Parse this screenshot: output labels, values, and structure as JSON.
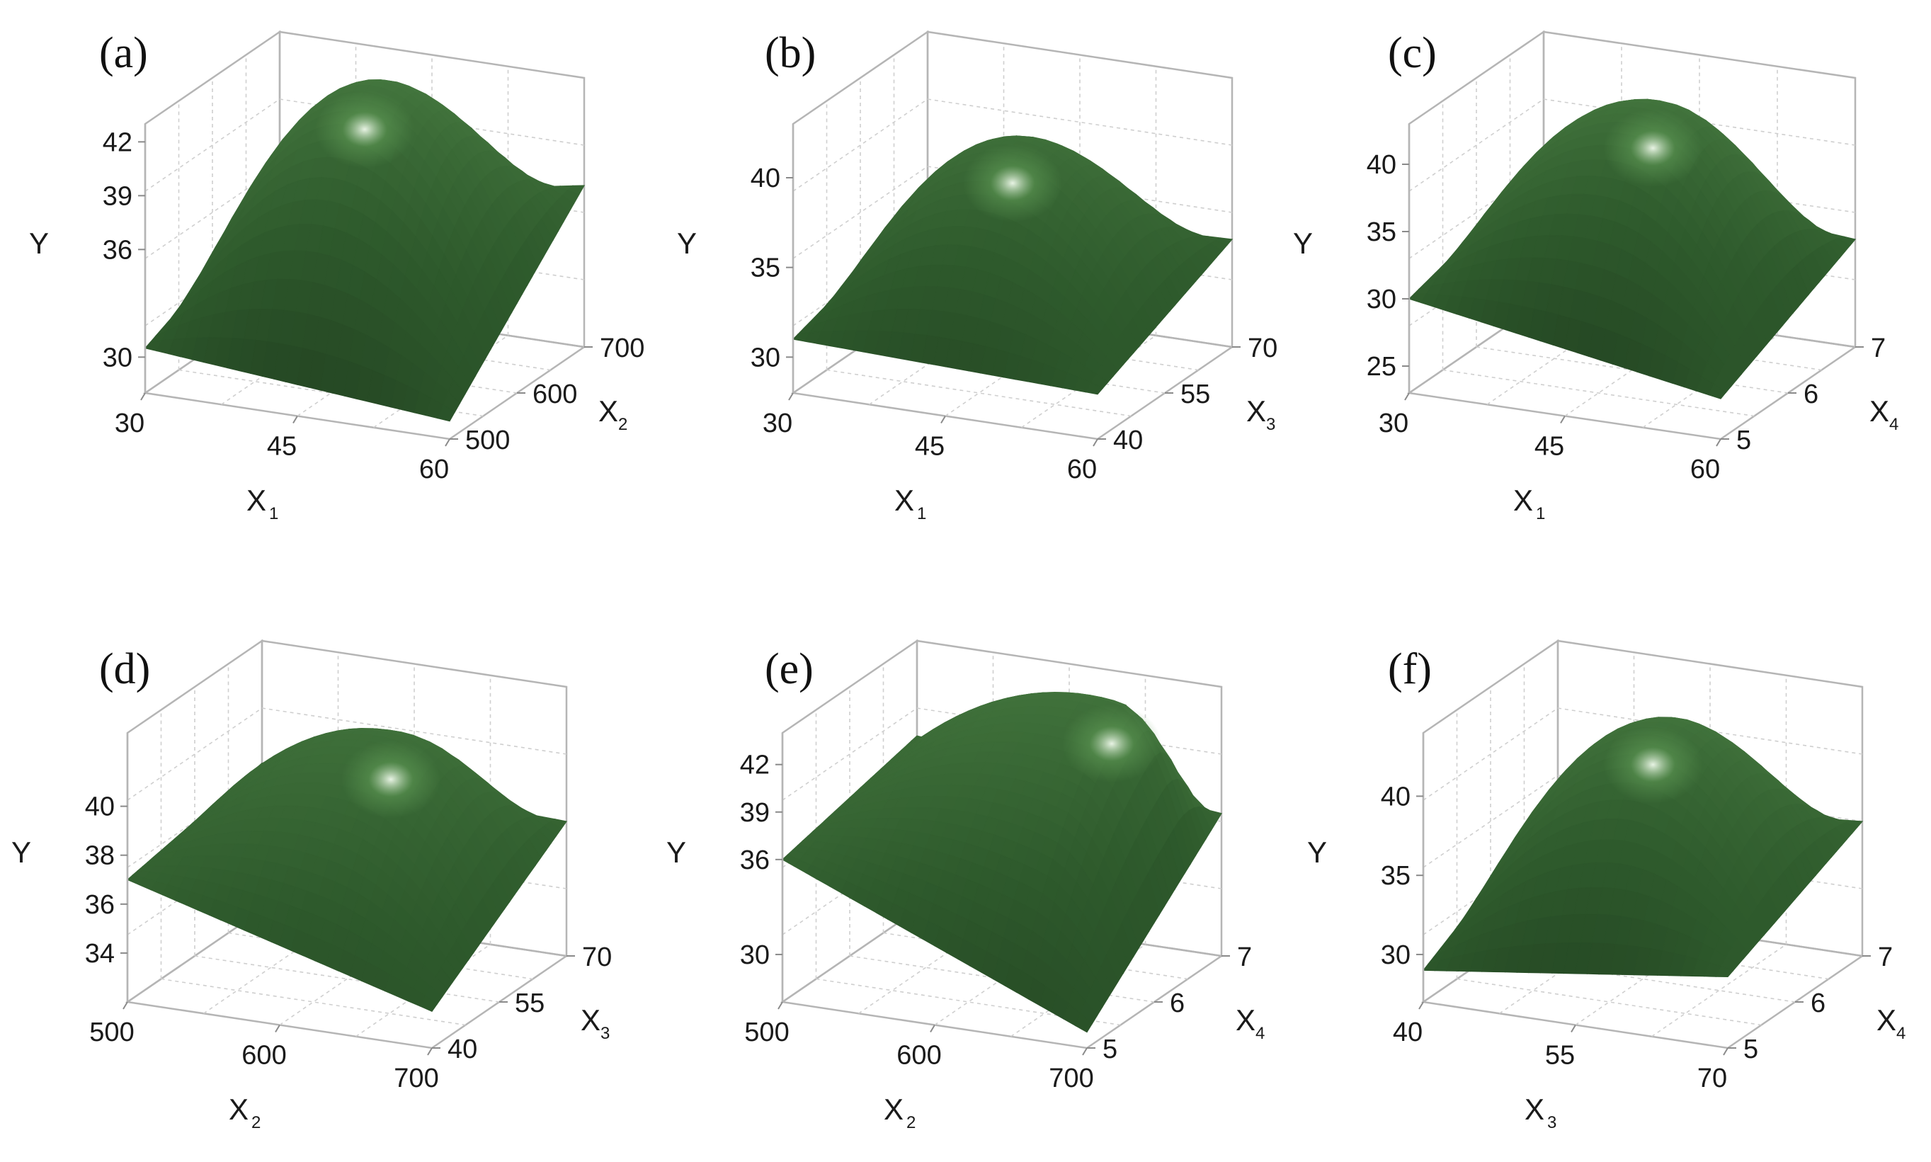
{
  "colors": {
    "surface_dark": "#142514",
    "surface_mid": "#2e5a2c",
    "surface_light": "#5f9a55",
    "highlight": "#f2fbee",
    "frame": "#b5b5b5"
  },
  "chart_data": [
    {
      "type": "surface",
      "panel": "(a)",
      "xlabel": "X",
      "xsub": "1",
      "xticks": [
        "30",
        "45",
        "60"
      ],
      "xlim": [
        30,
        60
      ],
      "ylabel": "X",
      "ysub": "2",
      "yticks": [
        "500",
        "600",
        "700"
      ],
      "ylim": [
        500,
        700
      ],
      "zlabel": "Y",
      "zticks": [
        "30",
        "36",
        "39",
        "42"
      ],
      "zlim": [
        28,
        43
      ],
      "peak": {
        "x": 45,
        "y": 600,
        "z": 43.5
      },
      "corner_values": {
        "x_min_y_min": 30.5,
        "x_max_y_min": 29.0,
        "x_min_y_max": 34.0,
        "x_max_y_max": 37.0
      },
      "edge_midpoints": {
        "y_min_mid": 38.5,
        "y_max_mid": 40.5
      }
    },
    {
      "type": "surface",
      "panel": "(b)",
      "xlabel": "X",
      "xsub": "1",
      "xticks": [
        "30",
        "45",
        "60"
      ],
      "xlim": [
        30,
        60
      ],
      "ylabel": "X",
      "ysub": "3",
      "yticks": [
        "40",
        "55",
        "70"
      ],
      "ylim": [
        40,
        70
      ],
      "zlabel": "Y",
      "zticks": [
        "30",
        "35",
        "40"
      ],
      "zlim": [
        28,
        43
      ],
      "peak": {
        "x": 45,
        "y": 55,
        "z": 40.5
      },
      "corner_values": {
        "x_min_y_min": 31.0,
        "x_max_y_min": 30.5,
        "x_min_y_max": 33.5,
        "x_max_y_max": 34.0
      },
      "edge_midpoints": {
        "y_min_mid": 37.5,
        "y_max_mid": 38.5
      }
    },
    {
      "type": "surface",
      "panel": "(c)",
      "xlabel": "X",
      "xsub": "1",
      "xticks": [
        "30",
        "45",
        "60"
      ],
      "xlim": [
        30,
        60
      ],
      "ylabel": "X",
      "ysub": "4",
      "yticks": [
        "5",
        "6",
        "7"
      ],
      "ylim": [
        5,
        7
      ],
      "zlabel": "Y",
      "zticks": [
        "25",
        "30",
        "35",
        "40"
      ],
      "zlim": [
        23,
        43
      ],
      "peak": {
        "x": 47,
        "y": 6,
        "z": 42.5
      },
      "corner_values": {
        "x_min_y_min": 30.0,
        "x_max_y_min": 26.0,
        "x_min_y_max": 33.0,
        "x_max_y_max": 31.0
      },
      "edge_midpoints": {
        "y_min_mid": 37.0,
        "y_max_mid": 39.0
      }
    },
    {
      "type": "surface",
      "panel": "(d)",
      "xlabel": "X",
      "xsub": "2",
      "xticks": [
        "500",
        "600",
        "700"
      ],
      "xlim": [
        500,
        700
      ],
      "ylabel": "X",
      "ysub": "3",
      "yticks": [
        "40",
        "55",
        "70"
      ],
      "ylim": [
        40,
        70
      ],
      "zlabel": "Y",
      "zticks": [
        "34",
        "36",
        "38",
        "40"
      ],
      "zlim": [
        32,
        43
      ],
      "peak": {
        "x": 620,
        "y": 58,
        "z": 41.5
      },
      "corner_values": {
        "x_min_y_min": 37.0,
        "x_max_y_min": 33.5,
        "x_min_y_max": 38.0,
        "x_max_y_max": 37.5
      },
      "edge_midpoints": {
        "y_min_mid": 38.0,
        "y_max_mid": 40.5
      }
    },
    {
      "type": "surface",
      "panel": "(e)",
      "xlabel": "X",
      "xsub": "2",
      "xticks": [
        "500",
        "600",
        "700"
      ],
      "xlim": [
        500,
        700
      ],
      "ylabel": "X",
      "ysub": "4",
      "yticks": [
        "5",
        "6",
        "7"
      ],
      "ylim": [
        5,
        7
      ],
      "zlabel": "Y",
      "zticks": [
        "30",
        "36",
        "39",
        "42"
      ],
      "zlim": [
        27,
        44
      ],
      "peak": {
        "x": 650,
        "y": 6.5,
        "z": 43.5
      },
      "corner_values": {
        "x_min_y_min": 36.0,
        "x_max_y_min": 28.0,
        "x_min_y_max": 38.0,
        "x_max_y_max": 36.0
      },
      "edge_midpoints": {
        "y_min_mid": 36.5,
        "y_max_mid": 41.0
      }
    },
    {
      "type": "surface",
      "panel": "(f)",
      "xlabel": "X",
      "xsub": "3",
      "xticks": [
        "40",
        "55",
        "70"
      ],
      "xlim": [
        40,
        70
      ],
      "ylabel": "X",
      "ysub": "4",
      "yticks": [
        "5",
        "6",
        "7"
      ],
      "ylim": [
        5,
        7
      ],
      "zlabel": "Y",
      "zticks": [
        "30",
        "35",
        "40"
      ],
      "zlim": [
        27,
        44
      ],
      "peak": {
        "x": 56,
        "y": 6,
        "z": 43.0
      },
      "corner_values": {
        "x_min_y_min": 29.0,
        "x_max_y_min": 31.5,
        "x_min_y_max": 34.0,
        "x_max_y_max": 35.5
      },
      "edge_midpoints": {
        "y_min_mid": 35.5,
        "y_max_mid": 38.5
      }
    }
  ]
}
